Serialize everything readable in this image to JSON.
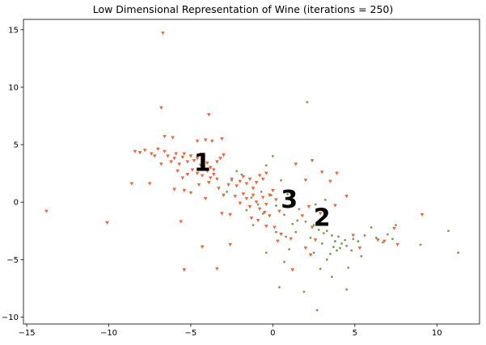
{
  "chart_data": {
    "type": "scatter",
    "title": "Low Dimensional Representation of Wine (iterations = 250)",
    "xlabel": "",
    "ylabel": "",
    "xlim": [
      -15.2,
      12.6
    ],
    "ylim": [
      -10.6,
      15.9
    ],
    "grid": false,
    "x_ticks": [
      -15,
      -10,
      -5,
      0,
      5,
      10
    ],
    "y_ticks": [
      -10,
      -5,
      0,
      5,
      10,
      15
    ],
    "colors": {
      "class1": "#e8663a",
      "class2": "#7a9a5c",
      "class3": "#e8663a"
    },
    "cluster_labels": [
      {
        "text": "1",
        "x": -4.3,
        "y": 3.4
      },
      {
        "text": "3",
        "x": 1.0,
        "y": 0.2
      },
      {
        "text": "2",
        "x": 3.0,
        "y": -1.4
      }
    ],
    "series": [
      {
        "marker": "triangle-down",
        "color": "#e8663a",
        "points": [
          [
            -13.8,
            -0.8
          ],
          [
            -10.1,
            -1.8
          ],
          [
            -8.6,
            1.6
          ],
          [
            -7.5,
            1.6
          ],
          [
            -8.4,
            4.4
          ],
          [
            -8.1,
            4.3
          ],
          [
            -7.8,
            4.5
          ],
          [
            -7.4,
            4.2
          ],
          [
            -7.2,
            4.0
          ],
          [
            -7.0,
            4.6
          ],
          [
            -6.8,
            3.3
          ],
          [
            -6.6,
            4.4
          ],
          [
            -6.4,
            4.0
          ],
          [
            -6.2,
            3.5
          ],
          [
            -6.0,
            3.8
          ],
          [
            -5.9,
            4.2
          ],
          [
            -5.7,
            3.3
          ],
          [
            -5.5,
            3.9
          ],
          [
            -5.4,
            4.2
          ],
          [
            -5.2,
            3.5
          ],
          [
            -5.0,
            4.0
          ],
          [
            -4.8,
            3.6
          ],
          [
            -4.6,
            3.8
          ],
          [
            -4.4,
            3.2
          ],
          [
            -4.2,
            3.9
          ],
          [
            -4.0,
            3.4
          ],
          [
            -3.8,
            3.0
          ],
          [
            -3.6,
            2.8
          ],
          [
            -3.4,
            3.5
          ],
          [
            -3.2,
            3.8
          ],
          [
            -6.7,
            14.7
          ],
          [
            -6.8,
            8.2
          ],
          [
            -6.6,
            5.7
          ],
          [
            -6.1,
            5.6
          ],
          [
            -4.6,
            5.3
          ],
          [
            -4.1,
            5.4
          ],
          [
            -3.9,
            7.6
          ],
          [
            -3.7,
            5.3
          ],
          [
            -3.1,
            5.5
          ],
          [
            -3.0,
            4.1
          ],
          [
            -5.8,
            2.7
          ],
          [
            -5.5,
            2.1
          ],
          [
            -5.2,
            2.4
          ],
          [
            -4.9,
            2.8
          ],
          [
            -4.6,
            2.5
          ],
          [
            -4.3,
            2.3
          ],
          [
            -4.0,
            2.7
          ],
          [
            -3.8,
            2.1
          ],
          [
            -3.6,
            2.4
          ],
          [
            -3.4,
            2.0
          ],
          [
            -6.0,
            1.1
          ],
          [
            -5.4,
            1.0
          ],
          [
            -5.0,
            0.8
          ],
          [
            -4.5,
            1.5
          ],
          [
            -4.1,
            0.3
          ],
          [
            -3.9,
            1.7
          ],
          [
            -3.3,
            1.2
          ],
          [
            -3.0,
            0.6
          ],
          [
            -2.7,
            1.5
          ],
          [
            -2.5,
            2.0
          ],
          [
            -2.2,
            1.4
          ],
          [
            -2.0,
            1.8
          ],
          [
            -1.8,
            2.2
          ],
          [
            -1.6,
            1.6
          ],
          [
            -1.4,
            2.0
          ],
          [
            -1.2,
            1.2
          ],
          [
            -1.0,
            1.7
          ],
          [
            -0.8,
            2.3
          ],
          [
            -0.6,
            2.0
          ],
          [
            -0.4,
            2.5
          ],
          [
            -2.3,
            0.5
          ],
          [
            -2.0,
            -0.1
          ],
          [
            -1.8,
            0.7
          ],
          [
            -1.6,
            0.3
          ],
          [
            -1.4,
            -0.4
          ],
          [
            -1.2,
            0.6
          ],
          [
            -1.0,
            0.0
          ],
          [
            -0.8,
            -0.6
          ],
          [
            -0.6,
            0.4
          ],
          [
            -0.4,
            -0.2
          ],
          [
            -0.2,
            0.6
          ],
          [
            0.0,
            1.0
          ],
          [
            0.2,
            0.2
          ],
          [
            0.4,
            -0.8
          ],
          [
            -0.2,
            -1.2
          ],
          [
            -0.5,
            -0.9
          ],
          [
            -0.9,
            -1.6
          ],
          [
            -1.3,
            -1.4
          ],
          [
            -2.6,
            -1.1
          ],
          [
            -3.1,
            -1.0
          ],
          [
            -5.6,
            -1.7
          ],
          [
            -4.3,
            -3.9
          ],
          [
            -2.6,
            -3.7
          ],
          [
            -3.4,
            -5.8
          ],
          [
            -5.4,
            -5.9
          ],
          [
            0.1,
            -2.2
          ],
          [
            0.5,
            -2.8
          ],
          [
            0.3,
            -3.4
          ],
          [
            1.1,
            -3.2
          ],
          [
            1.2,
            -5.9
          ],
          [
            -0.4,
            -2.1
          ],
          [
            1.4,
            3.3
          ],
          [
            2.4,
            3.6
          ],
          [
            2.0,
            1.9
          ],
          [
            3.0,
            2.6
          ],
          [
            3.5,
            1.8
          ],
          [
            3.9,
            2.5
          ],
          [
            4.5,
            0.5
          ],
          [
            3.8,
            -0.3
          ],
          [
            2.9,
            -1.0
          ],
          [
            2.2,
            -0.4
          ],
          [
            1.8,
            -1.2
          ],
          [
            2.4,
            -2.2
          ],
          [
            2.6,
            -3.3
          ],
          [
            2.0,
            -4.0
          ],
          [
            2.3,
            -4.6
          ],
          [
            4.9,
            -2.9
          ],
          [
            5.3,
            -4.0
          ],
          [
            6.4,
            -3.3
          ],
          [
            6.8,
            -3.4
          ],
          [
            7.4,
            -2.3
          ],
          [
            7.6,
            -3.7
          ],
          [
            9.1,
            -1.1
          ]
        ]
      },
      {
        "marker": "dot",
        "color": "#7a9a5c",
        "points": [
          [
            2.1,
            8.7
          ],
          [
            0.0,
            4.0
          ],
          [
            -0.4,
            3.2
          ],
          [
            -2.2,
            2.7
          ],
          [
            -1.9,
            2.4
          ],
          [
            -2.8,
            0.9
          ],
          [
            -1.3,
            0.4
          ],
          [
            -0.7,
            0.9
          ],
          [
            0.5,
            1.9
          ],
          [
            0.9,
            0.7
          ],
          [
            0.2,
            -0.3
          ],
          [
            0.7,
            -1.1
          ],
          [
            1.6,
            -0.6
          ],
          [
            2.0,
            -1.7
          ],
          [
            2.5,
            -2.0
          ],
          [
            2.8,
            -2.4
          ],
          [
            3.1,
            -2.7
          ],
          [
            3.3,
            -2.5
          ],
          [
            3.6,
            -2.9
          ],
          [
            3.8,
            -3.4
          ],
          [
            4.0,
            -3.0
          ],
          [
            4.2,
            -3.6
          ],
          [
            4.4,
            -3.3
          ],
          [
            3.7,
            -3.9
          ],
          [
            3.9,
            -4.2
          ],
          [
            4.1,
            -4.0
          ],
          [
            3.5,
            -4.5
          ],
          [
            4.5,
            -3.8
          ],
          [
            4.8,
            -4.2
          ],
          [
            5.2,
            -3.4
          ],
          [
            5.6,
            -2.9
          ],
          [
            6.0,
            -2.2
          ],
          [
            6.3,
            -3.1
          ],
          [
            6.7,
            -3.5
          ],
          [
            7.0,
            -2.8
          ],
          [
            7.3,
            -3.2
          ],
          [
            7.5,
            -2.0
          ],
          [
            9.0,
            -3.7
          ],
          [
            10.7,
            -2.5
          ],
          [
            11.3,
            -4.4
          ],
          [
            5.4,
            -4.7
          ],
          [
            4.6,
            -5.7
          ],
          [
            3.6,
            -6.5
          ],
          [
            2.9,
            -5.8
          ],
          [
            0.7,
            -5.2
          ],
          [
            -0.4,
            -4.4
          ],
          [
            0.4,
            -7.4
          ],
          [
            1.9,
            -7.8
          ],
          [
            4.5,
            -7.6
          ],
          [
            2.7,
            -9.4
          ],
          [
            3.2,
            0.2
          ],
          [
            2.6,
            -0.2
          ],
          [
            1.2,
            -1.9
          ],
          [
            1.4,
            -2.6
          ],
          [
            0.8,
            -3.0
          ],
          [
            -1.6,
            -0.7
          ],
          [
            -0.9,
            -0.2
          ],
          [
            -0.1,
            0.6
          ],
          [
            -0.6,
            -1.0
          ],
          [
            1.5,
            -1.6
          ],
          [
            2.3,
            -3.1
          ],
          [
            3.0,
            -3.6
          ],
          [
            2.5,
            -4.4
          ],
          [
            3.3,
            -5.0
          ],
          [
            4.9,
            -3.2
          ],
          [
            -2.5,
            1.9
          ],
          [
            -3.0,
            0.6
          ],
          [
            1.0,
            -4.1
          ],
          [
            0.2,
            -2.6
          ],
          [
            -1.2,
            -2.0
          ]
        ]
      }
    ]
  }
}
